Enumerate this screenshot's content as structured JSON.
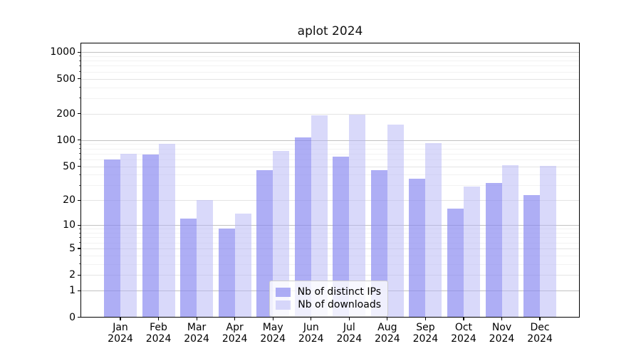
{
  "chart_title": "aplot 2024",
  "chart_data": {
    "type": "bar",
    "title": "aplot 2024",
    "categories": [
      "Jan 2024",
      "Feb 2024",
      "Mar 2024",
      "Apr 2024",
      "May 2024",
      "Jun 2024",
      "Jul 2024",
      "Aug 2024",
      "Sep 2024",
      "Oct 2024",
      "Nov 2024",
      "Dec 2024"
    ],
    "series": [
      {
        "name": "Nb of distinct IPs",
        "color": "#8888f0",
        "alpha": 0.68,
        "values": [
          60,
          68,
          12,
          9,
          45,
          108,
          65,
          45,
          36,
          16,
          32,
          23
        ]
      },
      {
        "name": "Nb of downloads",
        "color": "#b4b4f6",
        "alpha": 0.5,
        "values": [
          70,
          90,
          20,
          14,
          75,
          190,
          195,
          150,
          93,
          29,
          52,
          51
        ]
      }
    ],
    "xlabel": "",
    "ylabel": "",
    "yscale": "log1p",
    "ylim": [
      0,
      1266
    ],
    "y_tick_values": [
      0,
      1,
      2,
      5,
      10,
      20,
      50,
      100,
      200,
      500,
      1000
    ],
    "y_major_gridlines": [
      1,
      10,
      100,
      1000
    ],
    "y_minor_gridlines": [
      3,
      4,
      6,
      7,
      8,
      9,
      30,
      40,
      60,
      70,
      80,
      90,
      300,
      400,
      600,
      700,
      800,
      900
    ],
    "grid": true,
    "legend_position": "lower center",
    "frame_color": "#000000",
    "background_color": "#ffffff"
  }
}
